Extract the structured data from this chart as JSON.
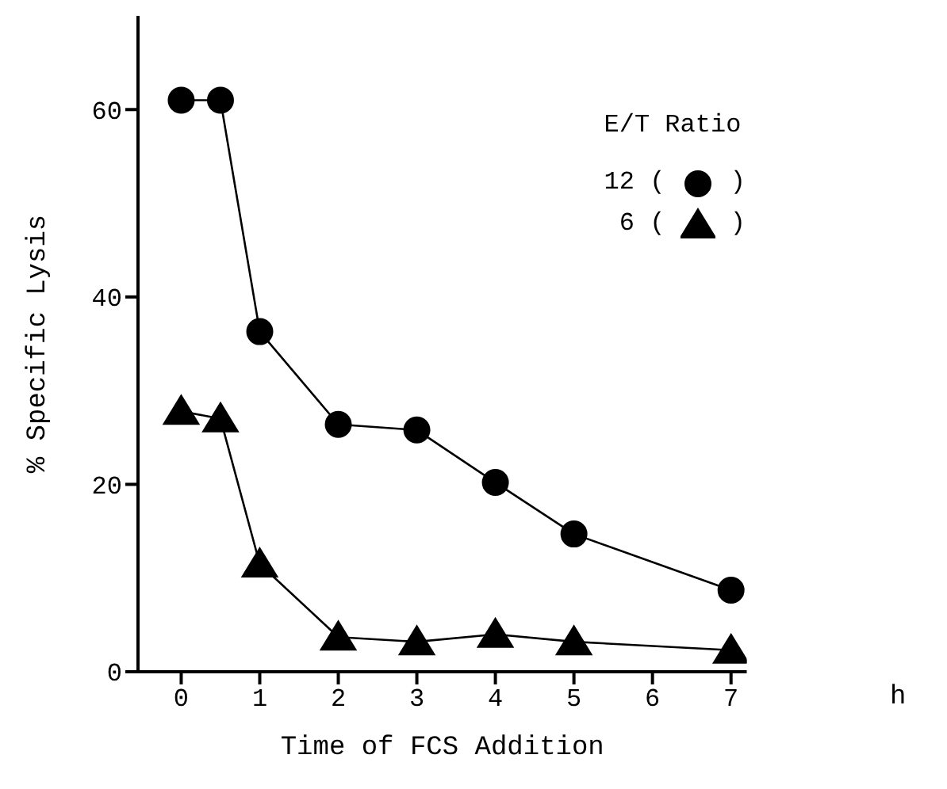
{
  "chart_data": {
    "type": "line",
    "xlabel": "Time of FCS Addition",
    "ylabel": "% Specific Lysis",
    "legend_title": "E/T Ratio",
    "annotations": [
      "h",
      "(",
      ")",
      "(",
      ")"
    ],
    "x": [
      0,
      0.5,
      1,
      2,
      3,
      4,
      5,
      7
    ],
    "xlim": [
      -0.55,
      7.2
    ],
    "xticks": [
      0,
      1,
      2,
      3,
      4,
      5,
      6,
      7
    ],
    "ylim": [
      0,
      70
    ],
    "yticks": [
      0,
      20,
      40,
      60
    ],
    "grid": false,
    "legend": "top right",
    "line_style": "solid",
    "series": [
      {
        "name": "12",
        "color": "#000000",
        "marker": "circle",
        "values": [
          61,
          61,
          36.3,
          26.4,
          25.8,
          20.2,
          14.7,
          8.7
        ]
      },
      {
        "name": "6",
        "color": "#000000",
        "marker": "triangle",
        "values": [
          27.8,
          27,
          11.5,
          3.7,
          3.2,
          4,
          3.2,
          2.3
        ]
      }
    ]
  }
}
